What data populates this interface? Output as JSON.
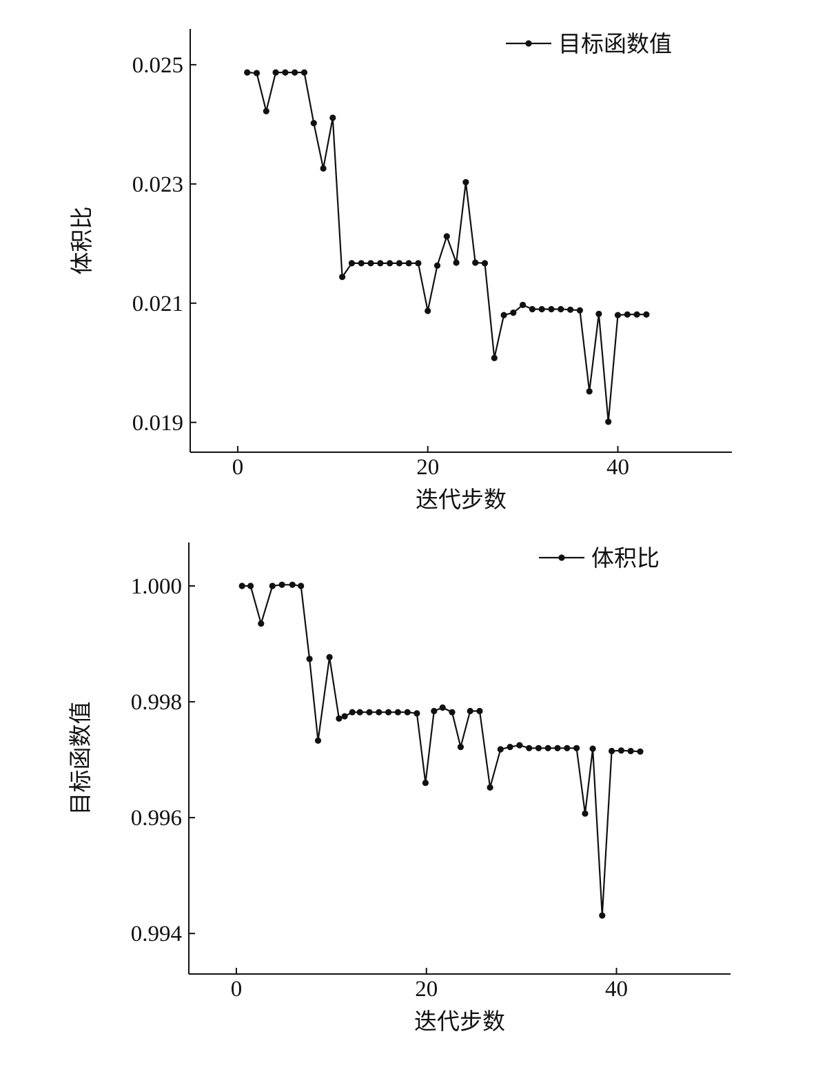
{
  "chart_data": [
    {
      "type": "line",
      "xlabel": "迭代步数",
      "ylabel": "体积比",
      "xlim": [
        -5,
        52
      ],
      "ylim": [
        0.0185,
        0.0256
      ],
      "xticks": [
        0,
        20,
        40
      ],
      "xtick_labels": [
        "0",
        "20",
        "40"
      ],
      "yticks": [
        0.019,
        0.021,
        0.023,
        0.025
      ],
      "ytick_labels": [
        "0.019",
        "0.021",
        "0.023",
        "0.025"
      ],
      "legend": {
        "position": "top-right",
        "entries": [
          "目标函数值"
        ]
      },
      "series": [
        {
          "name": "目标函数值",
          "x": [
            1,
            2,
            3,
            4,
            5,
            6,
            7,
            8,
            9,
            10,
            11,
            12,
            13,
            14,
            15,
            16,
            17,
            18,
            19,
            20,
            21,
            22,
            23,
            24,
            25,
            26,
            27,
            28,
            29,
            30,
            31,
            32,
            33,
            34,
            35,
            36,
            37,
            38,
            39,
            40,
            41,
            42,
            43
          ],
          "y": [
            0.02487,
            0.02486,
            0.02422,
            0.02487,
            0.02487,
            0.02487,
            0.02487,
            0.02402,
            0.02326,
            0.02411,
            0.02144,
            0.02167,
            0.02167,
            0.02167,
            0.02167,
            0.02167,
            0.02167,
            0.02167,
            0.02167,
            0.02087,
            0.02163,
            0.02212,
            0.02168,
            0.02303,
            0.02168,
            0.02167,
            0.02008,
            0.0208,
            0.02084,
            0.02097,
            0.0209,
            0.0209,
            0.0209,
            0.0209,
            0.02089,
            0.02088,
            0.01952,
            0.02082,
            0.01901,
            0.0208,
            0.02081,
            0.02081,
            0.02081
          ]
        }
      ]
    },
    {
      "type": "line",
      "xlabel": "迭代步数",
      "ylabel": "目标函数值",
      "xlim": [
        -5,
        52
      ],
      "ylim": [
        0.9933,
        1.00075
      ],
      "xticks": [
        0,
        20,
        40
      ],
      "xtick_labels": [
        "0",
        "20",
        "40"
      ],
      "yticks": [
        0.994,
        0.996,
        0.998,
        1.0
      ],
      "ytick_labels": [
        "0.994",
        "0.996",
        "0.998",
        "1.000"
      ],
      "legend": {
        "position": "top-right",
        "entries": [
          "体积比"
        ]
      },
      "series": [
        {
          "name": "体积比",
          "x": [
            0.6,
            1.5,
            2.6,
            3.8,
            4.8,
            5.9,
            6.8,
            7.7,
            8.6,
            9.8,
            10.8,
            11.4,
            12.2,
            13.0,
            14.0,
            15.0,
            16.0,
            17.0,
            18.0,
            19.0,
            19.9,
            20.8,
            21.7,
            22.7,
            23.6,
            24.6,
            25.6,
            26.7,
            27.8,
            28.8,
            29.8,
            30.8,
            31.8,
            32.8,
            33.8,
            34.8,
            35.8,
            36.7,
            37.5,
            38.5,
            39.5,
            40.5,
            41.5,
            42.5
          ],
          "y": [
            1.0,
            1.0,
            0.99935,
            1.0,
            1.00002,
            1.00002,
            1.0,
            0.99874,
            0.99733,
            0.99877,
            0.99771,
            0.99775,
            0.99782,
            0.99782,
            0.99782,
            0.99782,
            0.99782,
            0.99782,
            0.99782,
            0.9978,
            0.9966,
            0.99784,
            0.9979,
            0.99782,
            0.99722,
            0.99784,
            0.99784,
            0.99652,
            0.99718,
            0.99722,
            0.99725,
            0.9972,
            0.9972,
            0.9972,
            0.9972,
            0.9972,
            0.9972,
            0.99607,
            0.99719,
            0.99431,
            0.99715,
            0.99716,
            0.99715,
            0.99714
          ]
        }
      ]
    }
  ]
}
